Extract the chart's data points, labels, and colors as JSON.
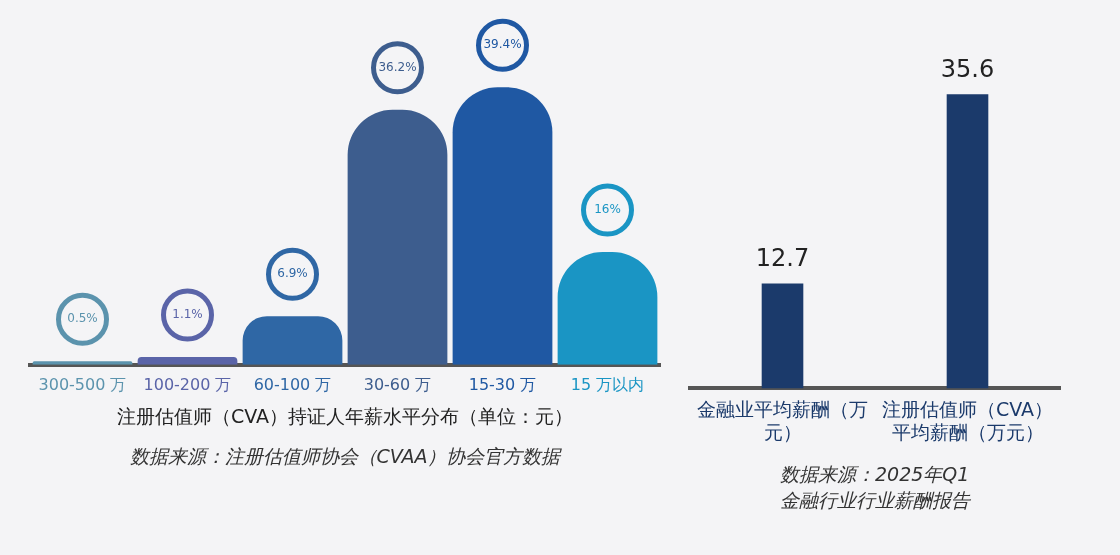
{
  "chart_data": [
    {
      "type": "bar",
      "title": "注册估值师（CVA）持证人年薪水平分布（单位：元）",
      "categories": [
        "300-500 万",
        "100-200 万",
        "60-100 万",
        "30-60 万",
        "15-30 万",
        "15 万以内"
      ],
      "values": [
        0.5,
        1.1,
        6.9,
        36.2,
        39.4,
        16
      ],
      "value_labels": [
        "0.5%",
        "1.1%",
        "6.9%",
        "36.2%",
        "39.4%",
        "16%"
      ],
      "colors": [
        "#5b93ad",
        "#5a64a8",
        "#2f67a5",
        "#3d5d8e",
        "#1f58a3",
        "#1a95c4"
      ],
      "annotations": [
        "数据来源：注册估值师协会（CVAA）协会官方数据"
      ]
    },
    {
      "type": "bar",
      "categories": [
        "金融业平均薪酬（万元）",
        "注册估值师（CVA）平均薪酬（万元）"
      ],
      "values": [
        12.7,
        35.6
      ],
      "color": "#1b3a6b",
      "data_labels": true,
      "annotations": [
        "数据来源：2025年Q1\n金融行业行业薪酬报告"
      ]
    }
  ]
}
